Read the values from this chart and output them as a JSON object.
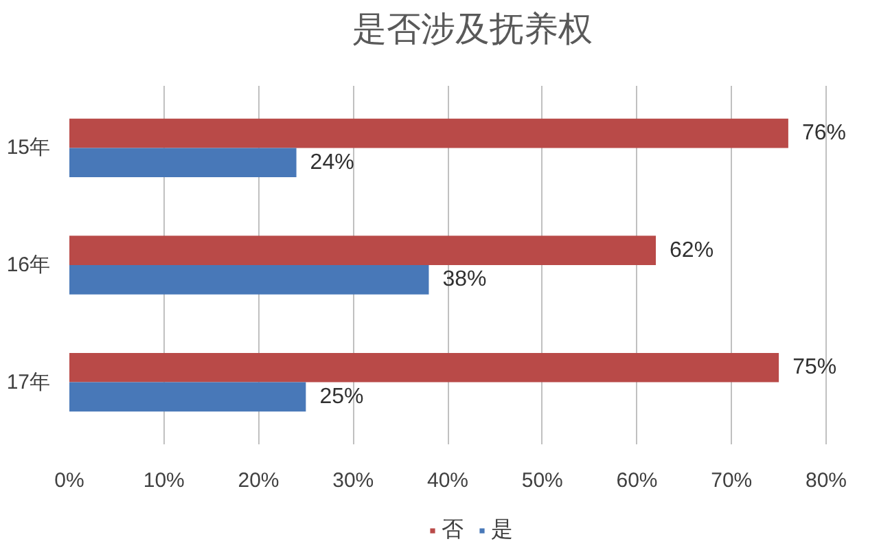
{
  "chart_data": {
    "type": "bar",
    "orientation": "horizontal",
    "title": "是否涉及抚养权",
    "categories": [
      "15年",
      "16年",
      "17年"
    ],
    "series": [
      {
        "name": "否",
        "color": "#b94a48",
        "values": [
          76,
          62,
          75
        ],
        "value_labels": [
          "76%",
          "62%",
          "75%"
        ]
      },
      {
        "name": "是",
        "color": "#4878b8",
        "values": [
          24,
          38,
          25
        ],
        "value_labels": [
          "24%",
          "38%",
          "25%"
        ]
      }
    ],
    "xlim": [
      0,
      80
    ],
    "xticks": [
      {
        "value": 0,
        "label": "0%"
      },
      {
        "value": 10,
        "label": "10%"
      },
      {
        "value": 20,
        "label": "20%"
      },
      {
        "value": 30,
        "label": "30%"
      },
      {
        "value": 40,
        "label": "40%"
      },
      {
        "value": 50,
        "label": "50%"
      },
      {
        "value": 60,
        "label": "60%"
      },
      {
        "value": 70,
        "label": "70%"
      },
      {
        "value": 80,
        "label": "80%"
      }
    ],
    "grid": "x",
    "legend": "bottom"
  }
}
